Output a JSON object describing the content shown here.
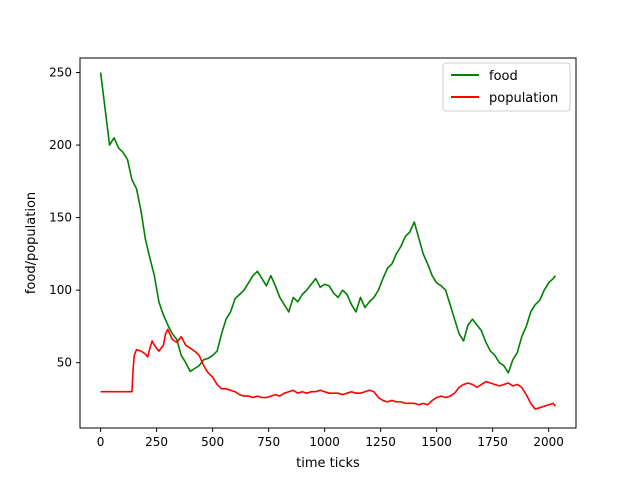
{
  "chart_data": {
    "type": "line",
    "title": "",
    "xlabel": "time ticks",
    "ylabel": "food/population",
    "xlim": [
      -92,
      2122
    ],
    "ylim": [
      5,
      260
    ],
    "xticks": [
      0,
      250,
      500,
      750,
      1000,
      1250,
      1500,
      1750,
      2000
    ],
    "yticks": [
      50,
      100,
      150,
      200,
      250
    ],
    "legend": {
      "location": "top-right"
    },
    "grid": false,
    "series": [
      {
        "name": "food",
        "color": "#008000",
        "x": [
          0,
          20,
          40,
          60,
          80,
          100,
          120,
          140,
          160,
          180,
          200,
          220,
          240,
          260,
          280,
          300,
          320,
          340,
          360,
          380,
          400,
          420,
          440,
          460,
          480,
          500,
          520,
          540,
          560,
          580,
          600,
          620,
          640,
          660,
          680,
          700,
          720,
          740,
          760,
          780,
          800,
          820,
          840,
          860,
          880,
          900,
          920,
          940,
          960,
          980,
          1000,
          1020,
          1040,
          1060,
          1080,
          1100,
          1120,
          1140,
          1160,
          1180,
          1200,
          1220,
          1240,
          1260,
          1280,
          1300,
          1320,
          1340,
          1360,
          1380,
          1400,
          1420,
          1440,
          1460,
          1480,
          1500,
          1520,
          1540,
          1560,
          1580,
          1600,
          1620,
          1640,
          1660,
          1680,
          1700,
          1720,
          1740,
          1760,
          1780,
          1800,
          1820,
          1840,
          1860,
          1880,
          1900,
          1920,
          1940,
          1960,
          1980,
          2000,
          2020,
          2030
        ],
        "values": [
          250,
          225,
          200,
          205,
          198,
          195,
          190,
          176,
          170,
          155,
          135,
          122,
          110,
          92,
          83,
          76,
          70,
          66,
          55,
          50,
          44,
          46,
          48,
          52,
          53,
          55,
          58,
          70,
          80,
          85,
          94,
          97,
          100,
          105,
          110,
          113,
          108,
          103,
          110,
          103,
          95,
          90,
          85,
          95,
          92,
          97,
          100,
          104,
          108,
          102,
          104,
          103,
          98,
          95,
          100,
          97,
          90,
          85,
          95,
          88,
          92,
          95,
          100,
          108,
          115,
          118,
          125,
          130,
          137,
          140,
          147,
          136,
          125,
          118,
          110,
          105,
          103,
          100,
          90,
          80,
          70,
          65,
          76,
          80,
          76,
          72,
          64,
          58,
          55,
          50,
          48,
          43,
          52,
          57,
          68,
          75,
          85,
          90,
          93,
          100,
          105,
          108,
          110
        ]
      },
      {
        "name": "population",
        "color": "#ff0000",
        "x": [
          0,
          40,
          80,
          140,
          145,
          150,
          160,
          180,
          200,
          210,
          220,
          230,
          240,
          260,
          280,
          290,
          300,
          320,
          340,
          360,
          380,
          400,
          420,
          440,
          460,
          480,
          500,
          520,
          540,
          560,
          580,
          600,
          620,
          640,
          660,
          680,
          700,
          720,
          740,
          760,
          780,
          800,
          820,
          840,
          860,
          880,
          900,
          920,
          940,
          960,
          980,
          1000,
          1020,
          1040,
          1060,
          1080,
          1100,
          1120,
          1140,
          1160,
          1180,
          1200,
          1220,
          1240,
          1260,
          1280,
          1300,
          1320,
          1340,
          1360,
          1380,
          1400,
          1420,
          1440,
          1460,
          1480,
          1500,
          1520,
          1540,
          1560,
          1580,
          1600,
          1620,
          1640,
          1660,
          1680,
          1700,
          1720,
          1740,
          1760,
          1780,
          1800,
          1820,
          1840,
          1860,
          1880,
          1900,
          1920,
          1940,
          1960,
          1980,
          2000,
          2020,
          2030
        ],
        "values": [
          30,
          30,
          30,
          30,
          45,
          55,
          59,
          58,
          56,
          54,
          60,
          65,
          62,
          58,
          62,
          70,
          73,
          66,
          64,
          68,
          62,
          60,
          58,
          55,
          48,
          43,
          40,
          35,
          32,
          32,
          31,
          30,
          28,
          27,
          27,
          26,
          27,
          26,
          26,
          27,
          28,
          27,
          29,
          30,
          31,
          29,
          30,
          29,
          30,
          30,
          31,
          30,
          29,
          29,
          29,
          28,
          29,
          30,
          29,
          29,
          30,
          31,
          30,
          26,
          24,
          23,
          24,
          23,
          23,
          22,
          22,
          22,
          21,
          22,
          21,
          24,
          26,
          27,
          26,
          27,
          29,
          33,
          35,
          36,
          35,
          33,
          35,
          37,
          36,
          35,
          34,
          35,
          36,
          34,
          35,
          33,
          28,
          22,
          18,
          19,
          20,
          21,
          22,
          20
        ]
      }
    ]
  }
}
